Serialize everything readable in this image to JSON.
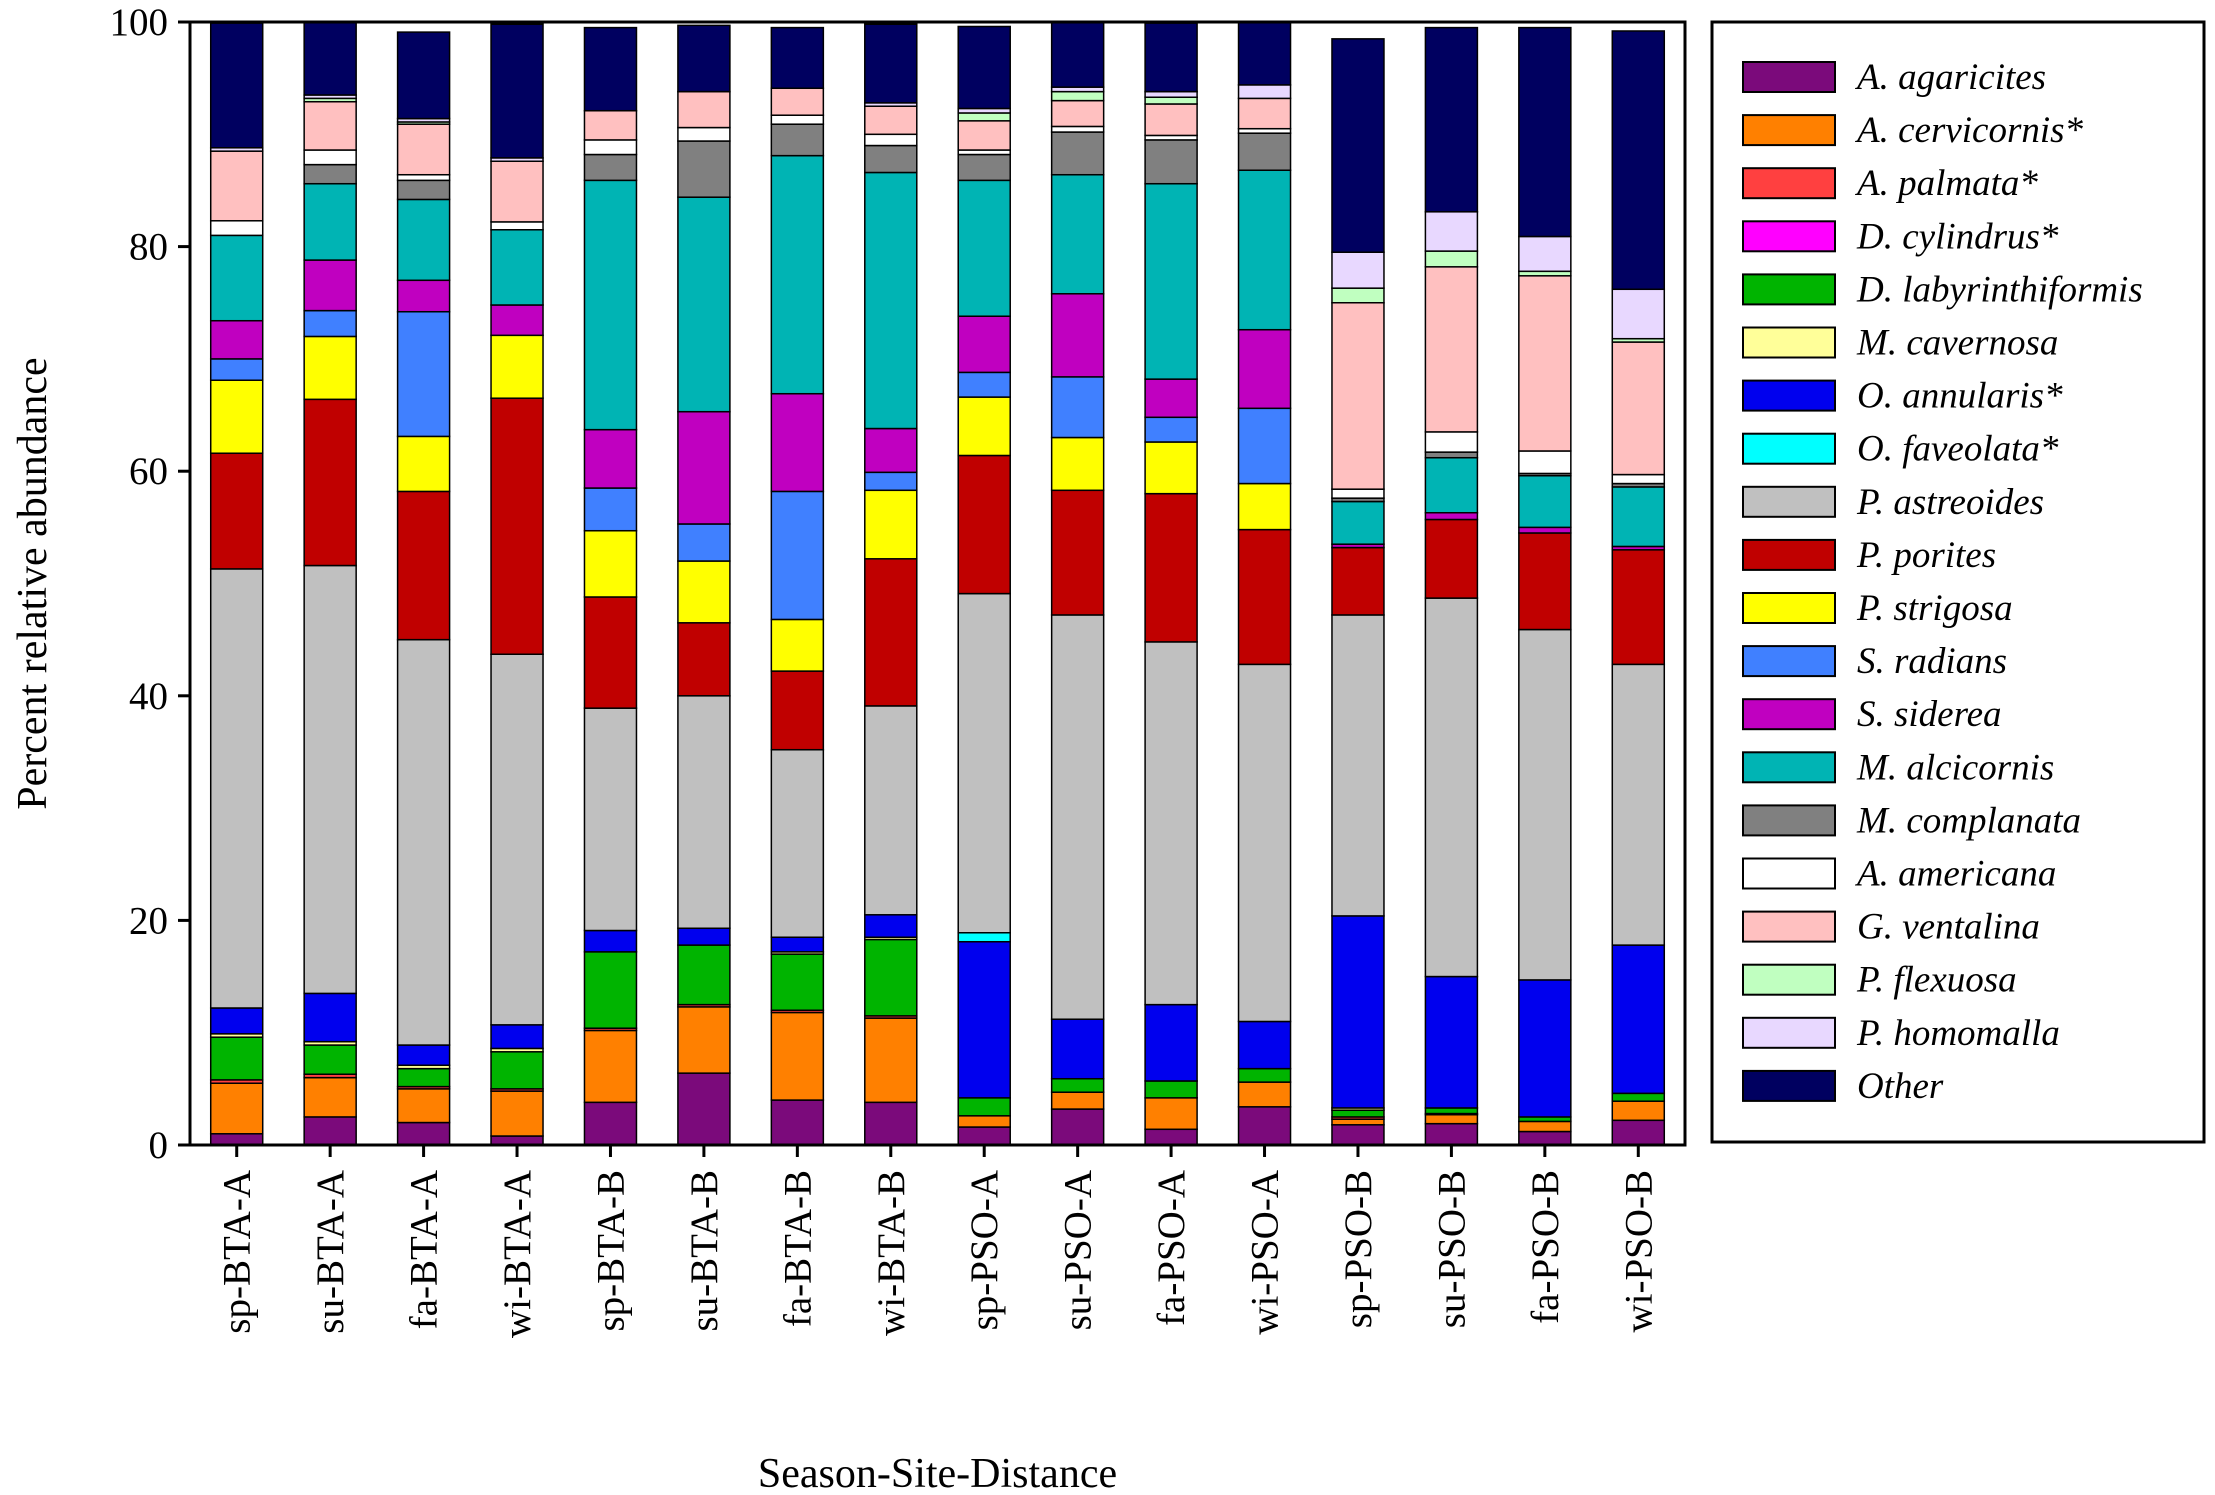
{
  "chart_data": {
    "type": "stacked-bar",
    "title": "",
    "xlabel": "Season-Site-Distance",
    "ylabel": "Percent relative abundance",
    "ylim": [
      0,
      100
    ],
    "yticks": [
      0,
      20,
      40,
      60,
      80,
      100
    ],
    "categories": [
      "sp-BTA-A",
      "su-BTA-A",
      "fa-BTA-A",
      "wi-BTA-A",
      "sp-BTA-B",
      "su-BTA-B",
      "fa-BTA-B",
      "wi-BTA-B",
      "sp-PSO-A",
      "su-PSO-A",
      "fa-PSO-A",
      "wi-PSO-A",
      "sp-PSO-B",
      "su-PSO-B",
      "fa-PSO-B",
      "wi-PSO-B"
    ],
    "legend_position": "right",
    "series": [
      {
        "name": "A. agaricites",
        "color": "#7b0a7b",
        "values": [
          1.0,
          2.5,
          2.0,
          0.8,
          3.8,
          6.4,
          4.0,
          3.8,
          1.6,
          3.2,
          1.4,
          3.4,
          1.8,
          1.9,
          1.2,
          2.2
        ]
      },
      {
        "name": "A. cervicornis*",
        "color": "#ff8000",
        "values": [
          4.5,
          3.5,
          3.0,
          4.0,
          6.4,
          5.9,
          7.8,
          7.5,
          1.0,
          1.5,
          2.8,
          2.2,
          0.5,
          0.8,
          0.9,
          1.7
        ]
      },
      {
        "name": "A. palmata*",
        "color": "#ff4040",
        "values": [
          0.3,
          0.3,
          0.2,
          0.2,
          0.2,
          0.2,
          0.2,
          0.2,
          0,
          0,
          0,
          0,
          0.2,
          0.1,
          0,
          0
        ]
      },
      {
        "name": "D. cylindrus*",
        "color": "#ff00ff",
        "values": [
          0,
          0,
          0,
          0,
          0,
          0,
          0,
          0,
          0,
          0,
          0,
          0,
          0,
          0,
          0,
          0
        ]
      },
      {
        "name": "D. labyrinthiformis",
        "color": "#00b400",
        "values": [
          3.8,
          2.6,
          1.6,
          3.3,
          6.8,
          5.3,
          5.0,
          6.8,
          1.6,
          1.2,
          1.5,
          1.2,
          0.6,
          0.5,
          0.4,
          0.7
        ]
      },
      {
        "name": "M. cavernosa",
        "color": "#ffff99",
        "values": [
          0.3,
          0.3,
          0.3,
          0.3,
          0,
          0,
          0.2,
          0.2,
          0,
          0,
          0,
          0,
          0.2,
          0,
          0,
          0
        ]
      },
      {
        "name": "O. annularis*",
        "color": "#0000ee",
        "values": [
          2.3,
          4.3,
          1.8,
          2.1,
          1.9,
          1.5,
          1.3,
          2.0,
          13.9,
          5.3,
          6.8,
          4.2,
          17.1,
          11.7,
          12.2,
          13.2
        ]
      },
      {
        "name": "O. faveolata*",
        "color": "#00ffff",
        "values": [
          0,
          0,
          0,
          0,
          0,
          0,
          0,
          0,
          0.8,
          0,
          0,
          0,
          0,
          0,
          0,
          0
        ]
      },
      {
        "name": "P. astreoides",
        "color": "#c0c0c0",
        "values": [
          39.1,
          38.1,
          36.1,
          33.0,
          19.8,
          20.7,
          16.7,
          18.6,
          30.2,
          36.0,
          32.3,
          31.8,
          26.8,
          33.7,
          31.2,
          25.0
        ]
      },
      {
        "name": "P. porites",
        "color": "#c00000",
        "values": [
          10.3,
          14.8,
          13.2,
          22.8,
          9.9,
          6.5,
          7.0,
          13.1,
          12.3,
          11.1,
          13.2,
          12.0,
          6.0,
          7.0,
          8.6,
          10.2
        ]
      },
      {
        "name": "P. strigosa",
        "color": "#ffff00",
        "values": [
          6.5,
          5.6,
          4.9,
          5.6,
          5.9,
          5.5,
          4.6,
          6.1,
          5.2,
          4.7,
          4.6,
          4.1,
          0,
          0,
          0,
          0
        ]
      },
      {
        "name": "S. radians",
        "color": "#4080ff",
        "values": [
          1.9,
          2.3,
          11.1,
          0,
          3.8,
          3.3,
          11.4,
          1.6,
          2.2,
          5.4,
          2.2,
          6.7,
          0,
          0,
          0,
          0
        ]
      },
      {
        "name": "S. siderea",
        "color": "#c000c0",
        "values": [
          3.4,
          4.5,
          2.8,
          2.7,
          5.2,
          10.0,
          8.7,
          3.9,
          5.0,
          7.4,
          3.4,
          7.0,
          0.3,
          0.6,
          0.5,
          0.3
        ]
      },
      {
        "name": "M. alcicornis",
        "color": "#00b4b4",
        "values": [
          7.6,
          6.8,
          7.2,
          6.7,
          22.2,
          19.1,
          21.2,
          22.8,
          12.1,
          10.6,
          17.4,
          14.2,
          3.8,
          4.9,
          4.6,
          5.3
        ]
      },
      {
        "name": "M. complanata",
        "color": "#808080",
        "values": [
          0,
          1.7,
          1.7,
          0,
          2.3,
          5.0,
          2.8,
          2.4,
          2.3,
          3.8,
          3.9,
          3.3,
          0.3,
          0.5,
          0.2,
          0.3
        ]
      },
      {
        "name": "A. americana",
        "color": "#ffffff",
        "values": [
          1.3,
          1.3,
          0.5,
          0.7,
          1.3,
          1.2,
          0.8,
          1.0,
          0.4,
          0.5,
          0.4,
          0.4,
          0.8,
          1.8,
          2.0,
          0.8
        ]
      },
      {
        "name": "G. ventalina",
        "color": "#ffc0c0",
        "values": [
          6.2,
          4.3,
          4.5,
          5.4,
          2.6,
          3.2,
          2.4,
          2.5,
          2.6,
          2.3,
          2.8,
          2.7,
          16.6,
          14.7,
          15.6,
          11.8
        ]
      },
      {
        "name": "P. flexuosa",
        "color": "#c0ffc0",
        "values": [
          0,
          0.3,
          0.2,
          0,
          0,
          0,
          0,
          0,
          0.7,
          0.8,
          0.6,
          0,
          1.3,
          1.4,
          0.4,
          0.3
        ]
      },
      {
        "name": "P. homomalla",
        "color": "#e8d8ff",
        "values": [
          0.3,
          0.3,
          0.3,
          0.3,
          0,
          0,
          0,
          0.3,
          0.4,
          0.4,
          0.5,
          1.2,
          3.2,
          3.5,
          3.1,
          4.4
        ]
      },
      {
        "name": "Other",
        "color": "#000060",
        "values": [
          11.1,
          6.5,
          7.7,
          11.9,
          7.4,
          5.9,
          5.4,
          7.0,
          7.3,
          5.8,
          6.1,
          5.6,
          19.0,
          16.4,
          18.6,
          23.0
        ]
      }
    ]
  }
}
